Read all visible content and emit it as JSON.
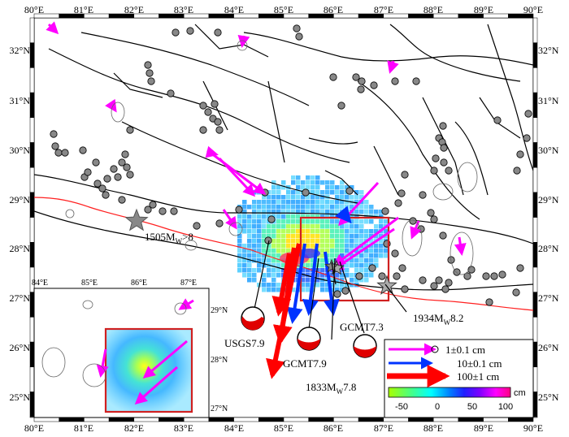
{
  "map": {
    "lon_ticks": [
      "80°E",
      "81°E",
      "82°E",
      "83°E",
      "84°E",
      "85°E",
      "86°E",
      "87°E",
      "88°E",
      "89°E",
      "90°E"
    ],
    "lat_ticks": [
      "32°N",
      "31°N",
      "30°N",
      "29°N",
      "28°N",
      "27°N",
      "26°N",
      "25°N"
    ],
    "lon_range": [
      80,
      90
    ],
    "lat_range": [
      24.5,
      32.6
    ]
  },
  "inset": {
    "lon_ticks": [
      "84°E",
      "85°E",
      "86°E",
      "87°E"
    ],
    "lat_ticks": [
      "29°N",
      "28°N",
      "27°N"
    ]
  },
  "labels": {
    "eq1505": "1505M",
    "eq1505_sub": "W",
    "eq1505_tail": ">8",
    "eq1934": "1934M",
    "eq1934_sub": "W",
    "eq1934_tail": "8.2",
    "eq1833": "1833M",
    "eq1833_sub": "W",
    "eq1833_tail": "7.8",
    "usgs": "USGS7.9",
    "gcmt79": "GCMT7.9",
    "gcmt73": "GCMT7.3"
  },
  "legend": {
    "items": [
      {
        "text": "1±0.1 cm",
        "color": "#ff00ff"
      },
      {
        "text": "10±0.1 cm",
        "color": "#0033ff"
      },
      {
        "text": "100±1 cm",
        "color": "#ff0000"
      }
    ]
  },
  "colorbar": {
    "ticks": [
      "-50",
      "0",
      "50",
      "100"
    ],
    "unit": "cm",
    "colors": [
      "#a8ff00",
      "#40ff80",
      "#00ffff",
      "#0080ff",
      "#2020ff",
      "#8000ff",
      "#ff00ff",
      "#ff0080"
    ]
  }
}
